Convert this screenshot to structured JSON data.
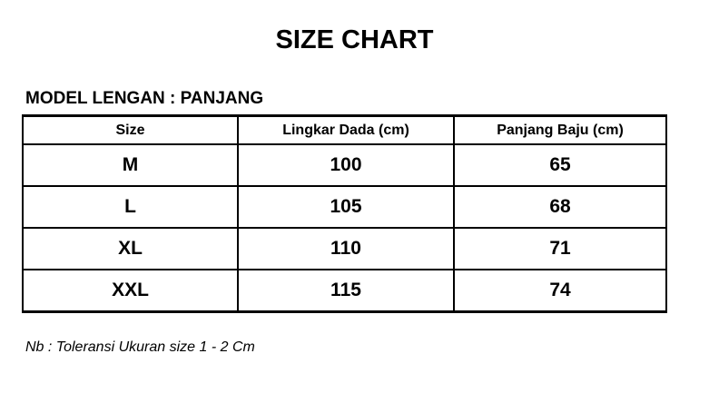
{
  "title": "SIZE CHART",
  "model": "MODEL LENGAN : PANJANG",
  "table": {
    "headers": [
      "Size",
      "Lingkar Dada (cm)",
      "Panjang Baju (cm)"
    ],
    "rows": [
      [
        "M",
        "100",
        "65"
      ],
      [
        "L",
        "105",
        "68"
      ],
      [
        "XL",
        "110",
        "71"
      ],
      [
        "XXL",
        "115",
        "74"
      ]
    ]
  },
  "note": "Nb : Toleransi Ukuran size 1 - 2 Cm"
}
